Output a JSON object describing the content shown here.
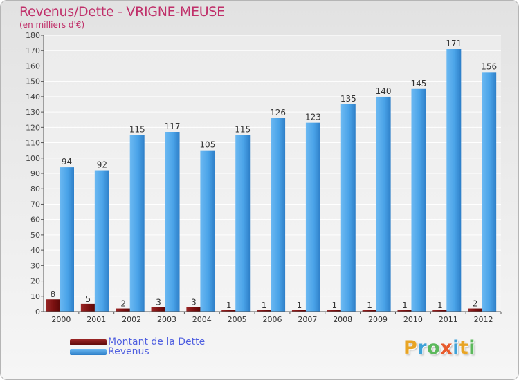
{
  "header": {
    "title": "Revenus/Dette - VRIGNE-MEUSE",
    "subtitle": "(en milliers d'€)"
  },
  "legend": {
    "debt_label": "Montant de la Dette",
    "revenue_label": "Revenus"
  },
  "logo": {
    "text": "Proxiti",
    "letters": [
      "P",
      "r",
      "o",
      "x",
      "i",
      "t",
      "i"
    ],
    "colors": [
      "#e8a424",
      "#3fa2d8",
      "#5cb85c",
      "#e85a2c",
      "#3fa2d8",
      "#e8a424",
      "#5cb85c"
    ]
  },
  "colors": {
    "title": "#c0306a",
    "debt": "#7a1010",
    "revenue": "#4aa3e8",
    "legend_text": "#4f5fe0"
  },
  "chart_data": {
    "type": "bar",
    "title": "Revenus/Dette - VRIGNE-MEUSE",
    "subtitle": "(en milliers d'€)",
    "categories": [
      "2000",
      "2001",
      "2002",
      "2003",
      "2004",
      "2005",
      "2006",
      "2007",
      "2008",
      "2009",
      "2010",
      "2011",
      "2012"
    ],
    "series": [
      {
        "name": "Montant de la Dette",
        "values": [
          8,
          5,
          2,
          3,
          3,
          1,
          1,
          1,
          1,
          1,
          1,
          1,
          2
        ]
      },
      {
        "name": "Revenus",
        "values": [
          94,
          92,
          115,
          117,
          105,
          115,
          126,
          123,
          135,
          140,
          145,
          171,
          156
        ]
      }
    ],
    "ylim": [
      0,
      180
    ],
    "yticks": [
      0,
      10,
      20,
      30,
      40,
      50,
      60,
      70,
      80,
      90,
      100,
      110,
      120,
      130,
      140,
      150,
      160,
      170,
      180
    ],
    "grid": true,
    "legend": "bottom-left"
  }
}
